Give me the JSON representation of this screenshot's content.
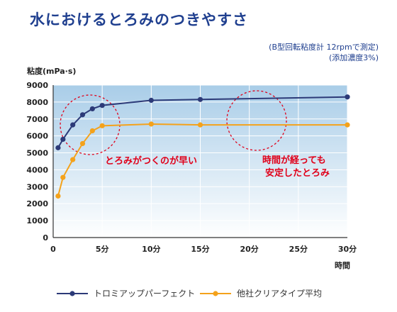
{
  "title": "水におけるとろみのつきやすさ",
  "notes": [
    "(B型回転粘度計 12rpmで測定)",
    "(添加濃度3%)"
  ],
  "colors": {
    "title": "#1f3f8f",
    "series1": "#2c3a78",
    "series2": "#f4a21b",
    "annotation": "#e0001a",
    "plot_top": "#a9cde8",
    "plot_bottom": "#ffffff"
  },
  "chart_data": {
    "type": "line",
    "ylabel": "粘度(mPa·s)",
    "xlabel": "時間",
    "xlim": [
      0,
      30
    ],
    "ylim": [
      0,
      9000
    ],
    "yticks": [
      0,
      1000,
      2000,
      3000,
      4000,
      5000,
      6000,
      7000,
      8000,
      9000
    ],
    "ytick_labels": [
      "0",
      "1000",
      "2000",
      "3000",
      "4000",
      "5000",
      "6000",
      "7000",
      "8000",
      "9000"
    ],
    "xticks": [
      0,
      5,
      10,
      15,
      20,
      25,
      30
    ],
    "xtick_labels": [
      "0",
      "5分",
      "10分",
      "15分",
      "20分",
      "25分",
      "30分"
    ],
    "legend_position": "bottom",
    "series": [
      {
        "name": "トロミアップパーフェクト",
        "marker": "circle",
        "x": [
          0.5,
          1,
          2,
          3,
          4,
          5,
          10,
          15,
          30
        ],
        "y": [
          5300,
          5800,
          6650,
          7250,
          7600,
          7800,
          8100,
          8150,
          8300
        ]
      },
      {
        "name": "他社クリアタイプ平均",
        "marker": "circle",
        "x": [
          0.5,
          1,
          2,
          3,
          4,
          5,
          10,
          15,
          30
        ],
        "y": [
          2450,
          3550,
          4600,
          5550,
          6300,
          6600,
          6700,
          6650,
          6650
        ]
      }
    ],
    "annotations": [
      {
        "text": "とろみがつくのが早い"
      },
      {
        "text_lines": [
          "時間が経っても",
          "安定したとろみ"
        ]
      }
    ]
  }
}
